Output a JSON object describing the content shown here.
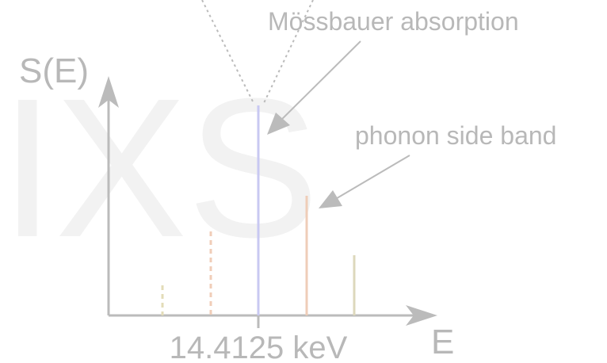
{
  "watermark": "IXS",
  "y_axis_label": "S(E)",
  "x_axis_label": "E",
  "tick_label": "14.4125 keV",
  "annotations": [
    "Mössbauer absorption",
    "phonon side band"
  ]
}
